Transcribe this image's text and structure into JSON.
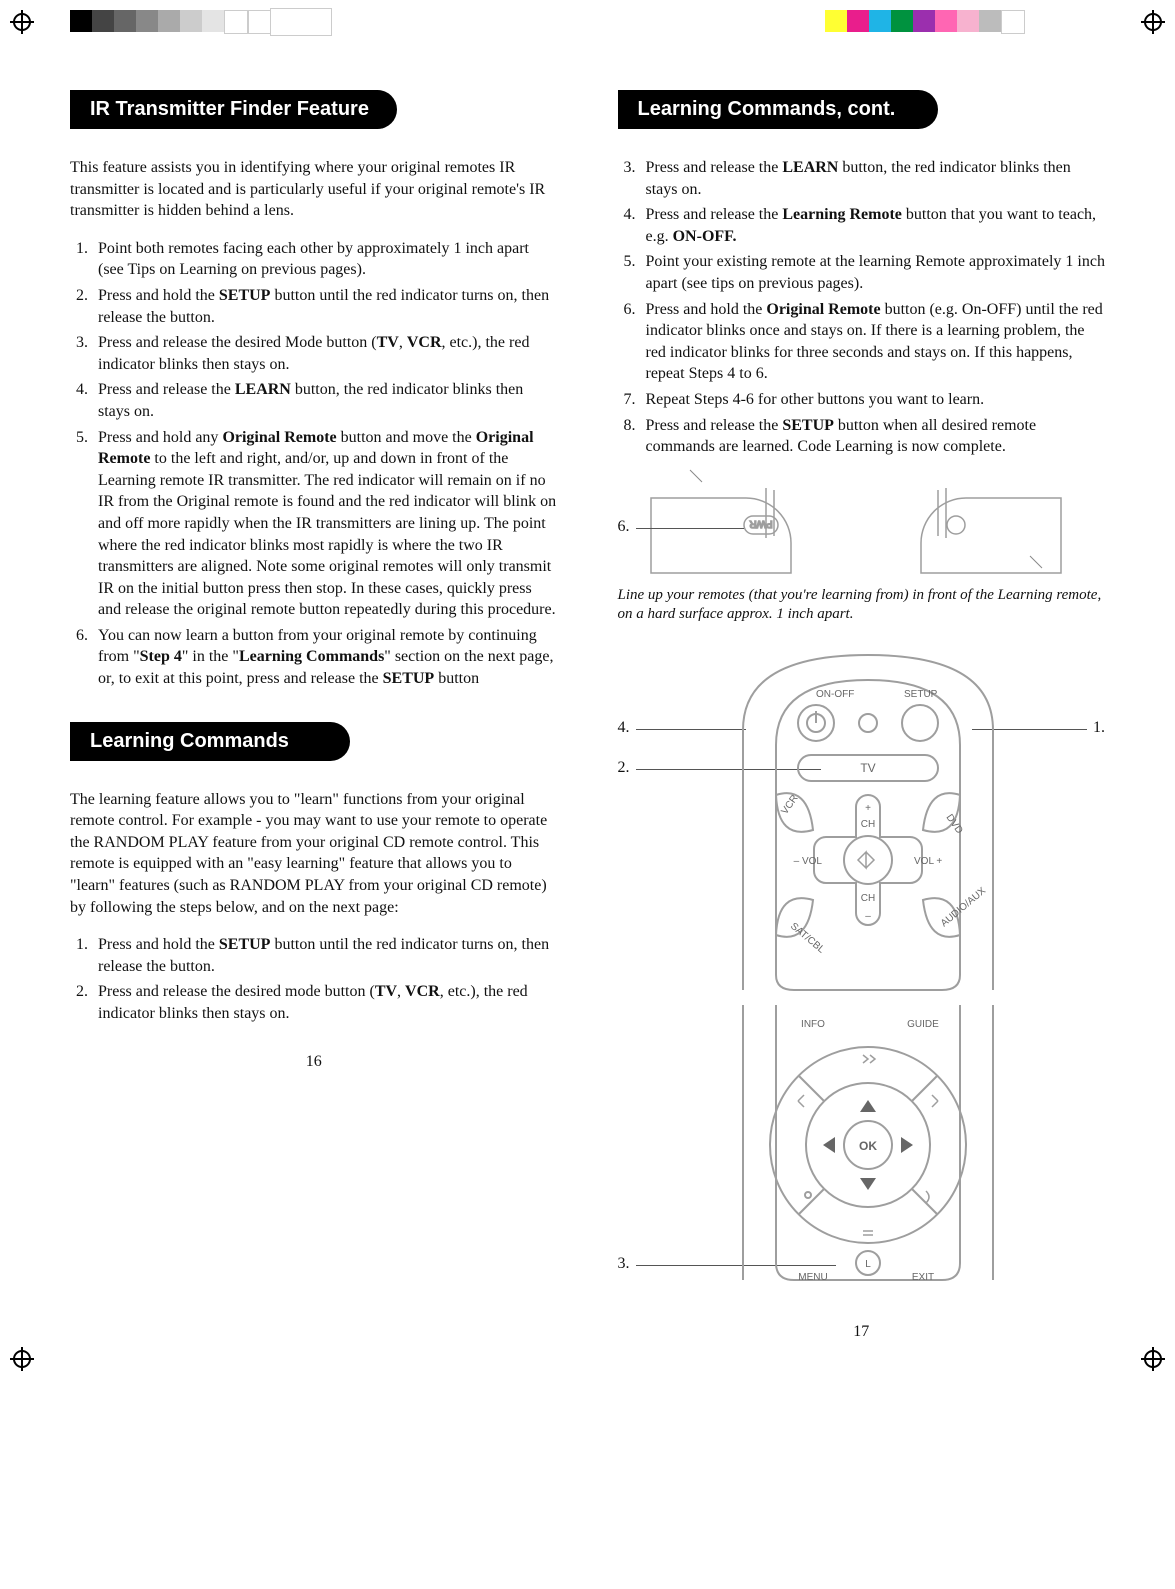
{
  "printmarks": {
    "left_swatches": [
      "#000000",
      "#444444",
      "#666666",
      "#888888",
      "#aaaaaa",
      "#cccccc",
      "#e4e4e4",
      "#ffffff",
      "#ffffff"
    ],
    "right_swatches": [
      "#ffff33",
      "#e91e8c",
      "#1fb4e6",
      "#00923f",
      "#9b2fae",
      "#ff66b3",
      "#f7b2cf",
      "#bcbcbc",
      "#ffffff"
    ]
  },
  "left": {
    "h1": "IR Transmitter Finder Feature",
    "p1": "This feature assists you in identifying where your original remotes IR transmitter is located and is particularly useful if your original remote's IR transmitter is hidden behind a lens.",
    "steps": [
      "Point both remotes facing each other by approximately 1 inch apart (see Tips on Learning on previous  pages).",
      "Press and hold the <b>SETUP</b> button until the red indicator turns on, then release the button.",
      "Press and release the desired Mode button (<b>TV</b>, <b>VCR</b>, etc.), the red indicator blinks then stays on.",
      "Press and release the <b>LEARN</b> button, the red indicator blinks then stays on.",
      "Press and hold any <b>Original Remote</b> button and move the <b>Original Remote</b> to the left and right, and/or, up and down in front of the Learning remote IR transmitter.  The red indicator will remain on if no IR from the Original remote is found and the red indicator will blink on and off more rapidly when the IR transmitters are lining up.  The point where the red indicator blinks most rapidly is where the two IR transmitters are aligned.  Note some original remotes will only transmit IR on the initial button press then stop.  In these cases, quickly press and release the original remote button repeatedly during this procedure.",
      "You can now learn a button from your original remote by continuing from \"<b>Step 4</b>\" in the \"<b>Learning Commands</b>\" section on the next page, or, to exit at this point, press and release the <b>SETUP</b> button"
    ],
    "h2": "Learning Commands",
    "p2": "The learning feature allows you to \"learn\" functions from your original remote control. For example - you may want to use your remote to operate the RANDOM PLAY feature from your original CD remote control. This remote is equipped with an \"easy learning\" feature that allows you to \"learn\" features (such as RANDOM PLAY from your original CD remote) by following the steps below, and on the next page:",
    "steps2": [
      "Press and hold the <b>SETUP</b> button until the red indicator turns on, then release the button.",
      "Press and release the desired mode button (<b>TV</b>, <b>VCR</b>, etc.), the red indicator blinks then stays on."
    ],
    "pagenum": "16"
  },
  "right": {
    "h1": "Learning Commands, cont.",
    "steps_start": 3,
    "steps": [
      "Press and release the <b>LEARN</b> button, the red indicator blinks then stays on.",
      "Press and release the <b>Learning Remote</b> button that you want to teach, e.g. <b>ON-OFF.</b>",
      "Point your existing remote at the learning Remote approximately 1 inch apart (see tips on previous pages).",
      "Press and hold the <b>Original Remote</b> button (e.g. On-OFF) until the red indicator blinks once and stays on. If there is a learning problem, the red indicator blinks for three seconds and stays on. If this happens, repeat Steps 4 to 6.",
      "Repeat Steps 4-6 for other buttons you want to learn.",
      "Press and release the <b>SETUP</b> button when all desired remote commands are learned. Code Learning is now complete."
    ],
    "callout6": "6.",
    "caption1": "Line up your remotes (that you're learning from) in front of the Learning remote, on a hard surface approx. 1 inch apart.",
    "callouts": {
      "c1": "1.",
      "c2": "2.",
      "c3": "3.",
      "c4": "4."
    },
    "labels": {
      "onoff": "ON-OFF",
      "setup": "SETUP",
      "tv": "TV",
      "vcr": "VCR",
      "dvd": "DVD",
      "satcbl": "SAT/CBL",
      "audioaux": "AUDIO/AUX",
      "ch": "CH",
      "volminus": "– VOL",
      "volplus": "VOL +",
      "info": "INFO",
      "guide": "GUIDE",
      "menu": "MENU",
      "exit": "EXIT",
      "ok": "OK",
      "pwr": "PWR",
      "L": "L"
    },
    "pagenum": "17"
  },
  "style": {
    "pill_bg": "#000000",
    "pill_fg": "#ffffff",
    "line_color": "#555555",
    "remote_stroke": "#9e9e9e",
    "remote_text": "#666666",
    "accent_blue": "#2a5db0"
  }
}
